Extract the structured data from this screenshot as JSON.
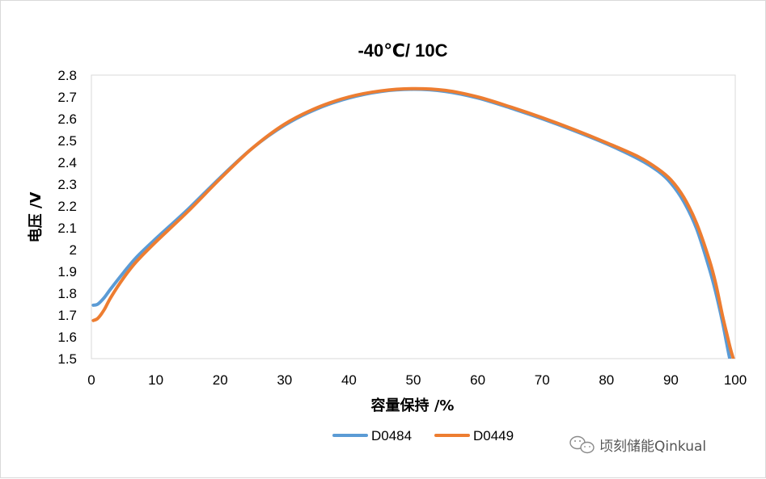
{
  "chart_data": {
    "type": "line",
    "title": "-40℃/ 10C",
    "xlabel": "容量保持 /%",
    "ylabel": "电压 /V",
    "xlim": [
      0,
      100
    ],
    "ylim": [
      1.5,
      2.8
    ],
    "x_ticks": [
      "0",
      "10",
      "20",
      "30",
      "40",
      "50",
      "60",
      "70",
      "80",
      "90",
      "100"
    ],
    "y_ticks": [
      "1.5",
      "1.6",
      "1.7",
      "1.8",
      "1.9",
      "2",
      "2.1",
      "2.2",
      "2.3",
      "2.4",
      "2.5",
      "2.6",
      "2.7",
      "2.8"
    ],
    "grid": false,
    "legend_position": "bottom",
    "series": [
      {
        "name": "D0484",
        "color": "#5b9bd5",
        "x": [
          0.3,
          1,
          2,
          3,
          5,
          7,
          10,
          15,
          20,
          25,
          30,
          35,
          40,
          45,
          50,
          55,
          60,
          65,
          70,
          75,
          80,
          85,
          88,
          90,
          92,
          94,
          96,
          97,
          98,
          98.6,
          99.0,
          99.3
        ],
        "y": [
          1.745,
          1.75,
          1.78,
          1.82,
          1.895,
          1.965,
          2.05,
          2.185,
          2.33,
          2.465,
          2.57,
          2.645,
          2.695,
          2.725,
          2.735,
          2.725,
          2.695,
          2.65,
          2.6,
          2.545,
          2.485,
          2.415,
          2.36,
          2.305,
          2.22,
          2.095,
          1.91,
          1.8,
          1.67,
          1.58,
          1.52,
          1.48
        ]
      },
      {
        "name": "D0449",
        "color": "#ed7d31",
        "x": [
          0.3,
          1,
          2,
          3,
          5,
          7,
          10,
          15,
          20,
          25,
          30,
          35,
          40,
          45,
          50,
          55,
          60,
          65,
          70,
          75,
          80,
          85,
          88,
          90,
          92,
          94,
          96,
          97,
          98,
          98.8,
          99.3,
          99.7
        ],
        "y": [
          1.675,
          1.685,
          1.725,
          1.78,
          1.87,
          1.945,
          2.035,
          2.175,
          2.325,
          2.465,
          2.575,
          2.65,
          2.7,
          2.728,
          2.738,
          2.73,
          2.7,
          2.655,
          2.605,
          2.55,
          2.49,
          2.425,
          2.37,
          2.32,
          2.24,
          2.12,
          1.95,
          1.84,
          1.7,
          1.6,
          1.54,
          1.5
        ]
      }
    ]
  },
  "watermark": {
    "text": "顷刻储能Qinkual",
    "icon": "wechat-icon"
  }
}
